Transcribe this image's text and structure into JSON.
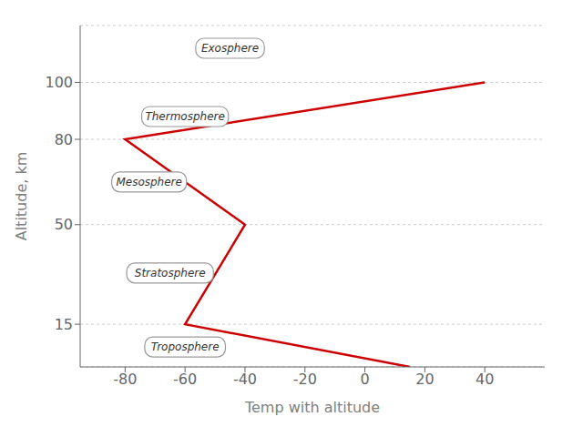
{
  "chart_data": {
    "type": "line",
    "xlabel": "Temp with altitude",
    "ylabel": "Altitude, km",
    "x": [
      15,
      -60,
      -40,
      -80,
      40
    ],
    "values": [
      0,
      15,
      50,
      80,
      100
    ],
    "color": "#cc0000",
    "xlim": [
      -95,
      60
    ],
    "ylim": [
      0,
      120
    ],
    "xticks": [
      -80,
      -60,
      -40,
      -20,
      0,
      20,
      40
    ],
    "yticks": [
      15,
      50,
      80,
      100
    ],
    "grid": "y",
    "annotations": [
      {
        "text": "Troposphere",
        "x": -60,
        "y": 7
      },
      {
        "text": "Stratosphere",
        "x": -65,
        "y": 33
      },
      {
        "text": "Mesosphere",
        "x": -72,
        "y": 65
      },
      {
        "text": "Thermosphere",
        "x": -60,
        "y": 88
      },
      {
        "text": "Exosphere",
        "x": -45,
        "y": 112
      }
    ]
  }
}
